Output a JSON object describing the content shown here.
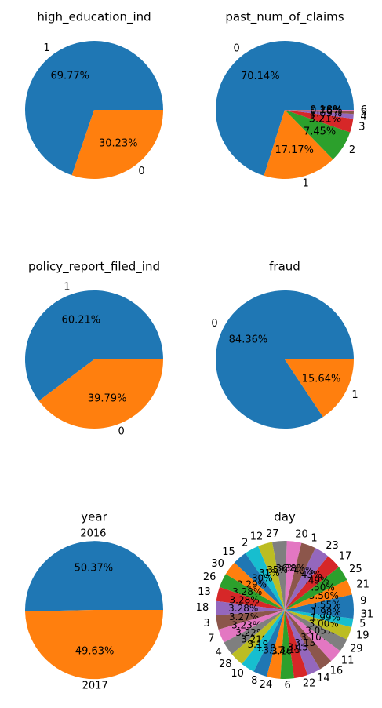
{
  "chart_data": [
    {
      "type": "pie",
      "title": "high_education_ind",
      "categories": [
        "1",
        "0"
      ],
      "values": [
        69.77,
        30.23
      ],
      "labels_pct": [
        "69.77%",
        "30.23%"
      ],
      "colors": [
        "#1f77b4",
        "#ff7f0e"
      ]
    },
    {
      "type": "pie",
      "title": "past_num_of_claims",
      "categories": [
        "0",
        "1",
        "2",
        "3",
        "4",
        "5",
        "6"
      ],
      "values": [
        70.14,
        17.17,
        7.45,
        3.21,
        1.09,
        0.76,
        0.18
      ],
      "labels_pct": [
        "70.14%",
        "17.17%",
        "7.45%",
        "3.21%",
        "1.09%",
        "0.76%",
        "0.18%"
      ],
      "colors": [
        "#1f77b4",
        "#ff7f0e",
        "#2ca02c",
        "#d62728",
        "#9467bd",
        "#8c564b",
        "#e377c2"
      ]
    },
    {
      "type": "pie",
      "title": "policy_report_filed_ind",
      "categories": [
        "1",
        "0"
      ],
      "values": [
        60.21,
        39.79
      ],
      "labels_pct": [
        "60.21%",
        "39.79%"
      ],
      "colors": [
        "#1f77b4",
        "#ff7f0e"
      ]
    },
    {
      "type": "pie",
      "title": "fraud",
      "categories": [
        "0",
        "1"
      ],
      "values": [
        84.36,
        15.64
      ],
      "labels_pct": [
        "84.36%",
        "15.64%"
      ],
      "colors": [
        "#1f77b4",
        "#ff7f0e"
      ]
    },
    {
      "type": "pie",
      "title": "year",
      "categories": [
        "2016",
        "2017"
      ],
      "values": [
        50.37,
        49.63
      ],
      "labels_pct": [
        "50.37%",
        "49.63%"
      ],
      "colors": [
        "#1f77b4",
        "#ff7f0e"
      ]
    },
    {
      "type": "pie",
      "title": "day",
      "categories": [
        "9",
        "21",
        "25",
        "17",
        "23",
        "1",
        "20",
        "27",
        "12",
        "2",
        "15",
        "30",
        "26",
        "13",
        "18",
        "3",
        "7",
        "4",
        "28",
        "10",
        "8",
        "24",
        "6",
        "22",
        "14",
        "16",
        "11",
        "29",
        "19",
        "5",
        "31"
      ],
      "values": [
        3.55,
        3.5,
        3.5,
        3.49,
        3.43,
        3.4,
        3.38,
        3.36,
        3.35,
        3.31,
        3.3,
        3.29,
        3.28,
        3.28,
        3.28,
        3.27,
        3.23,
        3.22,
        3.21,
        3.19,
        3.18,
        3.17,
        3.16,
        3.15,
        3.15,
        3.13,
        3.1,
        3.05,
        3.0,
        1.99,
        1.98
      ],
      "labels_pct": [
        "3.55%",
        "3.50%",
        "3.50%",
        "3.49%",
        "3.43%",
        "3.40%",
        "3.38%",
        "3.36%",
        "3.35%",
        "3.31%",
        "3.30%",
        "3.29%",
        "3.28%",
        "3.28%",
        "3.28%",
        "3.27%",
        "3.23%",
        "3.22%",
        "3.21%",
        "3.19%",
        "3.18%",
        "3.17%",
        "3.16%",
        "3.15%",
        "3.15%",
        "3.13%",
        "3.10%",
        "3.05%",
        "3.00%",
        "1.99%",
        "1.98%"
      ],
      "colors": [
        "#1f77b4",
        "#ff7f0e",
        "#2ca02c",
        "#d62728",
        "#9467bd",
        "#8c564b",
        "#e377c2",
        "#7f7f7f",
        "#bcbd22",
        "#17becf"
      ]
    }
  ]
}
